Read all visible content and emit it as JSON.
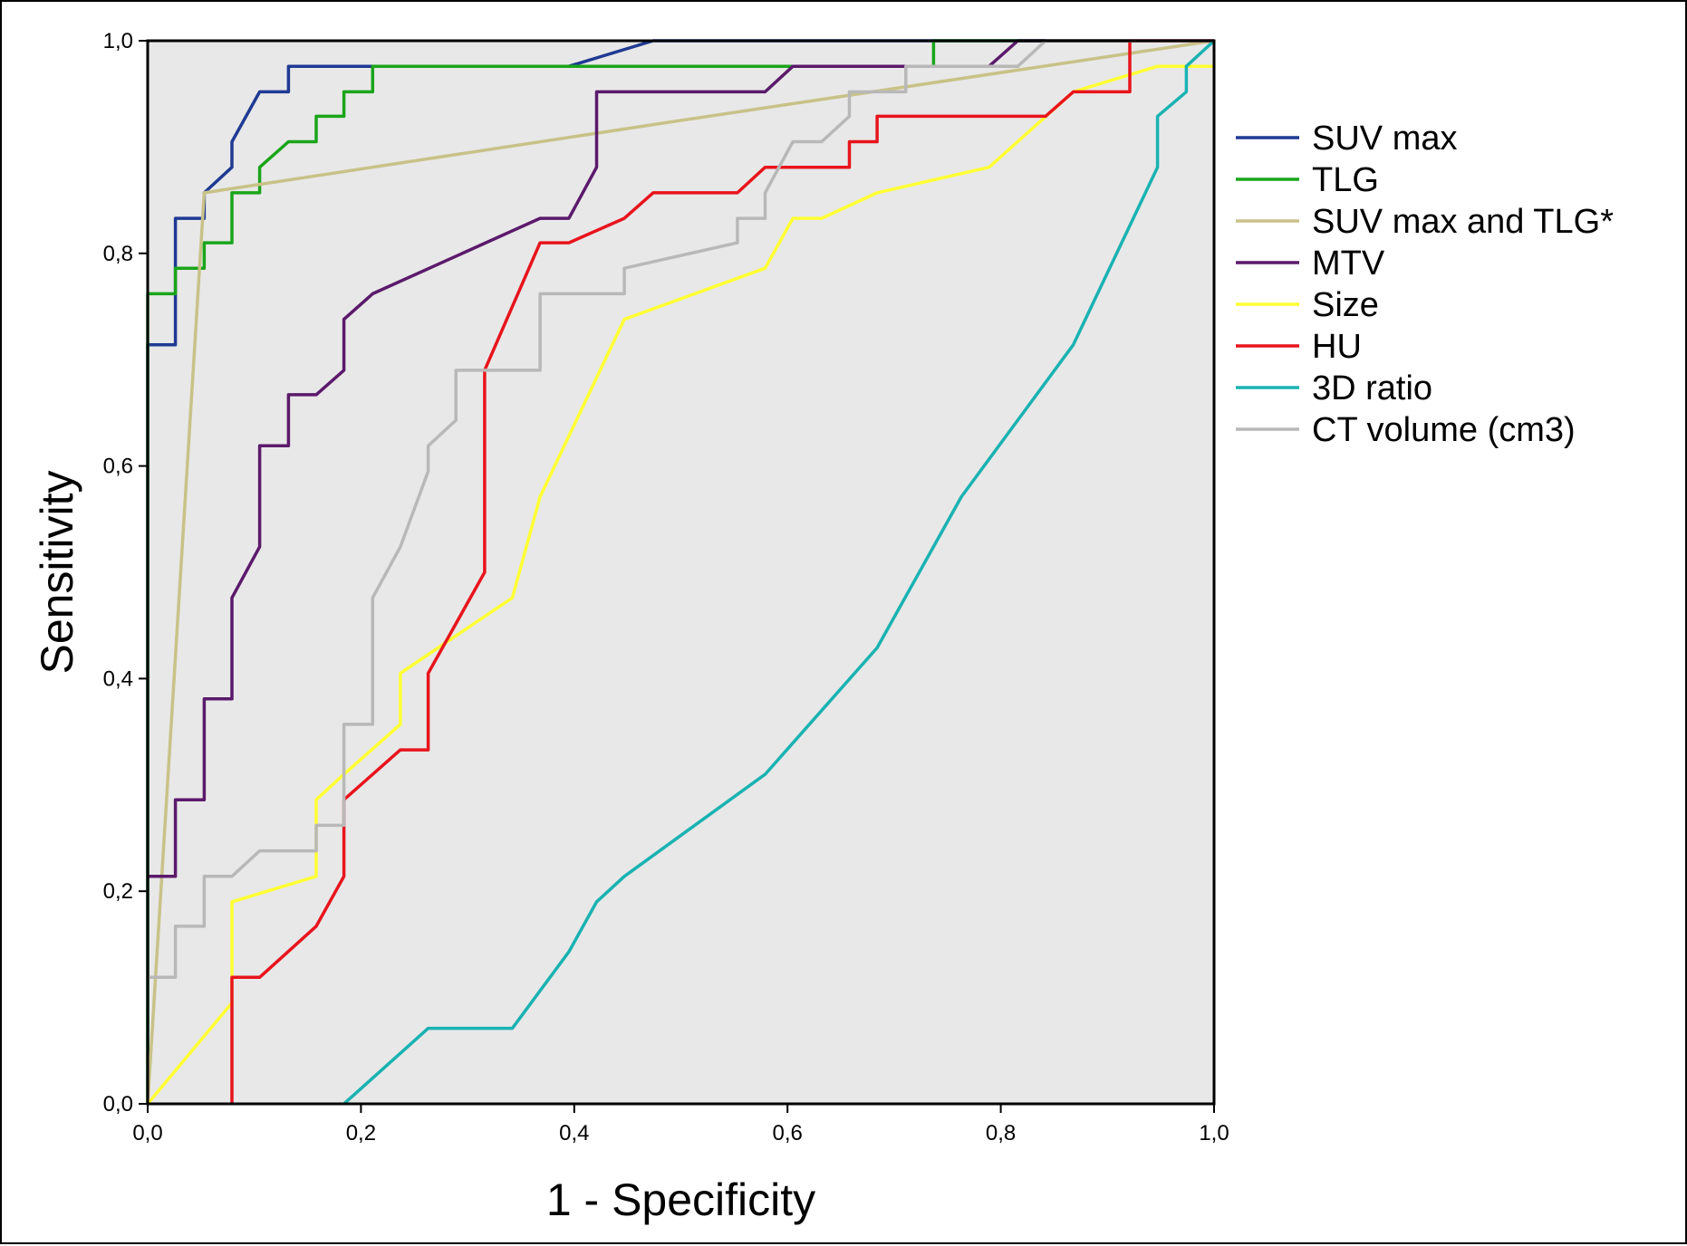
{
  "chart_data": {
    "type": "line",
    "title": "",
    "xlabel": "1 - Specificity",
    "ylabel": "Sensitivity",
    "xlim": [
      0,
      1
    ],
    "ylim": [
      0,
      1
    ],
    "xticks": [
      "0,0",
      "0,2",
      "0,4",
      "0,6",
      "0,8",
      "1,0"
    ],
    "yticks": [
      "0,0",
      "0,2",
      "0,4",
      "0,6",
      "0,8",
      "1,0"
    ],
    "tick_values": [
      0,
      0.2,
      0.4,
      0.6,
      0.8,
      1.0
    ],
    "plot_background": "#e8e8e8",
    "grid": false,
    "legend_position": "right",
    "series": [
      {
        "name": "SUV max",
        "color": "#1f3a93",
        "points": [
          [
            0,
            0
          ],
          [
            0,
            0.714
          ],
          [
            0.026,
            0.714
          ],
          [
            0.026,
            0.833
          ],
          [
            0.053,
            0.833
          ],
          [
            0.053,
            0.857
          ],
          [
            0.079,
            0.881
          ],
          [
            0.079,
            0.905
          ],
          [
            0.105,
            0.952
          ],
          [
            0.132,
            0.952
          ],
          [
            0.132,
            0.976
          ],
          [
            0.395,
            0.976
          ],
          [
            0.474,
            1.0
          ],
          [
            1.0,
            1.0
          ]
        ]
      },
      {
        "name": "TLG",
        "color": "#1aa51a",
        "points": [
          [
            0,
            0
          ],
          [
            0,
            0.762
          ],
          [
            0.026,
            0.762
          ],
          [
            0.026,
            0.786
          ],
          [
            0.053,
            0.786
          ],
          [
            0.053,
            0.81
          ],
          [
            0.079,
            0.81
          ],
          [
            0.079,
            0.857
          ],
          [
            0.105,
            0.857
          ],
          [
            0.105,
            0.881
          ],
          [
            0.132,
            0.905
          ],
          [
            0.158,
            0.905
          ],
          [
            0.158,
            0.929
          ],
          [
            0.184,
            0.929
          ],
          [
            0.184,
            0.952
          ],
          [
            0.211,
            0.952
          ],
          [
            0.211,
            0.976
          ],
          [
            0.737,
            0.976
          ],
          [
            0.737,
            1.0
          ],
          [
            1.0,
            1.0
          ]
        ]
      },
      {
        "name": "SUV max and TLG*",
        "color": "#c8c288",
        "points": [
          [
            0,
            0
          ],
          [
            0.053,
            0.857
          ],
          [
            0.5,
            0.925
          ],
          [
            1.0,
            1.0
          ]
        ]
      },
      {
        "name": "MTV",
        "color": "#5b1a6b",
        "points": [
          [
            0,
            0.214
          ],
          [
            0.026,
            0.214
          ],
          [
            0.026,
            0.286
          ],
          [
            0.053,
            0.286
          ],
          [
            0.053,
            0.381
          ],
          [
            0.079,
            0.381
          ],
          [
            0.079,
            0.476
          ],
          [
            0.105,
            0.524
          ],
          [
            0.105,
            0.619
          ],
          [
            0.132,
            0.619
          ],
          [
            0.132,
            0.667
          ],
          [
            0.158,
            0.667
          ],
          [
            0.184,
            0.69
          ],
          [
            0.184,
            0.738
          ],
          [
            0.211,
            0.762
          ],
          [
            0.368,
            0.833
          ],
          [
            0.395,
            0.833
          ],
          [
            0.421,
            0.881
          ],
          [
            0.421,
            0.952
          ],
          [
            0.579,
            0.952
          ],
          [
            0.605,
            0.976
          ],
          [
            0.789,
            0.976
          ],
          [
            0.816,
            1.0
          ],
          [
            1.0,
            1.0
          ]
        ]
      },
      {
        "name": "Size",
        "color": "#ffff33",
        "points": [
          [
            0,
            0
          ],
          [
            0.079,
            0.095
          ],
          [
            0.079,
            0.19
          ],
          [
            0.158,
            0.214
          ],
          [
            0.158,
            0.286
          ],
          [
            0.184,
            0.31
          ],
          [
            0.237,
            0.357
          ],
          [
            0.237,
            0.405
          ],
          [
            0.342,
            0.476
          ],
          [
            0.368,
            0.571
          ],
          [
            0.447,
            0.738
          ],
          [
            0.579,
            0.786
          ],
          [
            0.605,
            0.833
          ],
          [
            0.632,
            0.833
          ],
          [
            0.684,
            0.857
          ],
          [
            0.789,
            0.881
          ],
          [
            0.868,
            0.952
          ],
          [
            0.947,
            0.976
          ],
          [
            1.0,
            0.976
          ]
        ]
      },
      {
        "name": "HU",
        "color": "#e8141c",
        "points": [
          [
            0.079,
            0
          ],
          [
            0.079,
            0.119
          ],
          [
            0.105,
            0.119
          ],
          [
            0.158,
            0.167
          ],
          [
            0.184,
            0.214
          ],
          [
            0.184,
            0.286
          ],
          [
            0.237,
            0.333
          ],
          [
            0.263,
            0.333
          ],
          [
            0.263,
            0.405
          ],
          [
            0.316,
            0.5
          ],
          [
            0.316,
            0.69
          ],
          [
            0.368,
            0.81
          ],
          [
            0.395,
            0.81
          ],
          [
            0.447,
            0.833
          ],
          [
            0.474,
            0.857
          ],
          [
            0.553,
            0.857
          ],
          [
            0.579,
            0.881
          ],
          [
            0.658,
            0.881
          ],
          [
            0.658,
            0.905
          ],
          [
            0.684,
            0.905
          ],
          [
            0.684,
            0.929
          ],
          [
            0.842,
            0.929
          ],
          [
            0.868,
            0.952
          ],
          [
            0.921,
            0.952
          ],
          [
            0.921,
            1.0
          ],
          [
            1.0,
            1.0
          ]
        ]
      },
      {
        "name": "3D ratio",
        "color": "#1ab2b2",
        "points": [
          [
            0.184,
            0
          ],
          [
            0.263,
            0.071
          ],
          [
            0.342,
            0.071
          ],
          [
            0.395,
            0.143
          ],
          [
            0.421,
            0.19
          ],
          [
            0.447,
            0.214
          ],
          [
            0.579,
            0.31
          ],
          [
            0.684,
            0.429
          ],
          [
            0.763,
            0.571
          ],
          [
            0.868,
            0.714
          ],
          [
            0.947,
            0.881
          ],
          [
            0.947,
            0.929
          ],
          [
            0.974,
            0.952
          ],
          [
            0.974,
            0.976
          ],
          [
            1.0,
            1.0
          ]
        ]
      },
      {
        "name": "CT volume (cm3)",
        "color": "#b8b8b8",
        "points": [
          [
            0,
            0.119
          ],
          [
            0.026,
            0.119
          ],
          [
            0.026,
            0.167
          ],
          [
            0.053,
            0.167
          ],
          [
            0.053,
            0.214
          ],
          [
            0.079,
            0.214
          ],
          [
            0.105,
            0.238
          ],
          [
            0.158,
            0.238
          ],
          [
            0.158,
            0.262
          ],
          [
            0.184,
            0.262
          ],
          [
            0.184,
            0.357
          ],
          [
            0.211,
            0.357
          ],
          [
            0.211,
            0.476
          ],
          [
            0.237,
            0.524
          ],
          [
            0.263,
            0.595
          ],
          [
            0.263,
            0.619
          ],
          [
            0.289,
            0.643
          ],
          [
            0.289,
            0.69
          ],
          [
            0.368,
            0.69
          ],
          [
            0.368,
            0.762
          ],
          [
            0.447,
            0.762
          ],
          [
            0.447,
            0.786
          ],
          [
            0.553,
            0.81
          ],
          [
            0.553,
            0.833
          ],
          [
            0.579,
            0.833
          ],
          [
            0.579,
            0.857
          ],
          [
            0.605,
            0.905
          ],
          [
            0.632,
            0.905
          ],
          [
            0.658,
            0.929
          ],
          [
            0.658,
            0.952
          ],
          [
            0.711,
            0.952
          ],
          [
            0.711,
            0.976
          ],
          [
            0.816,
            0.976
          ],
          [
            0.842,
            1.0
          ],
          [
            1.0,
            1.0
          ]
        ]
      }
    ]
  }
}
